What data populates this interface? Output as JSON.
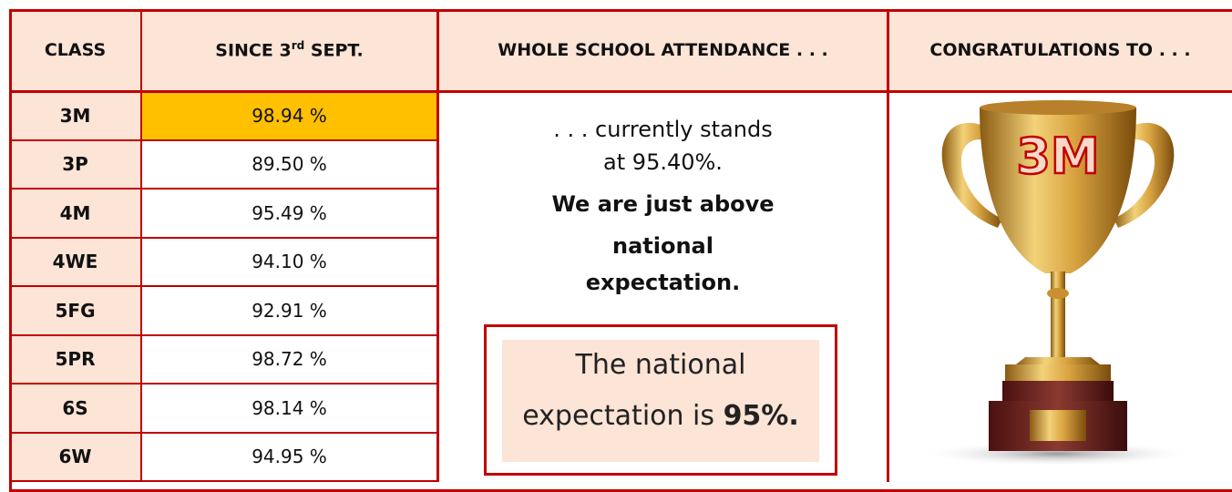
{
  "table": {
    "headers": [
      "CLASS",
      {
        "pre": "SINCE 3",
        "sup": "rd",
        "post": " SEPT."
      },
      "WHOLE SCHOOL ATTENDANCE . . .",
      "CONGRATULATIONS TO . . ."
    ],
    "rows": [
      [
        "3M",
        "98.94 %"
      ],
      [
        "3P",
        "89.50 %"
      ],
      [
        "4M",
        "95.49 %"
      ],
      [
        "4WE",
        "94.10 %"
      ],
      [
        "5FG",
        "92.91 %"
      ],
      [
        "5PR",
        "98.72 %"
      ],
      [
        "6S",
        "98.14 %"
      ],
      [
        "6W",
        "94.95 %"
      ]
    ],
    "highlight_row": 0
  },
  "attendance": {
    "intro": [
      ". . . currently stands",
      "at 95.40%."
    ],
    "emphasis": [
      "We are just above",
      "national",
      "expectation."
    ],
    "box": {
      "line1": "The national",
      "line2": "expectation is ",
      "bold": "95%."
    }
  },
  "winner": "3M"
}
